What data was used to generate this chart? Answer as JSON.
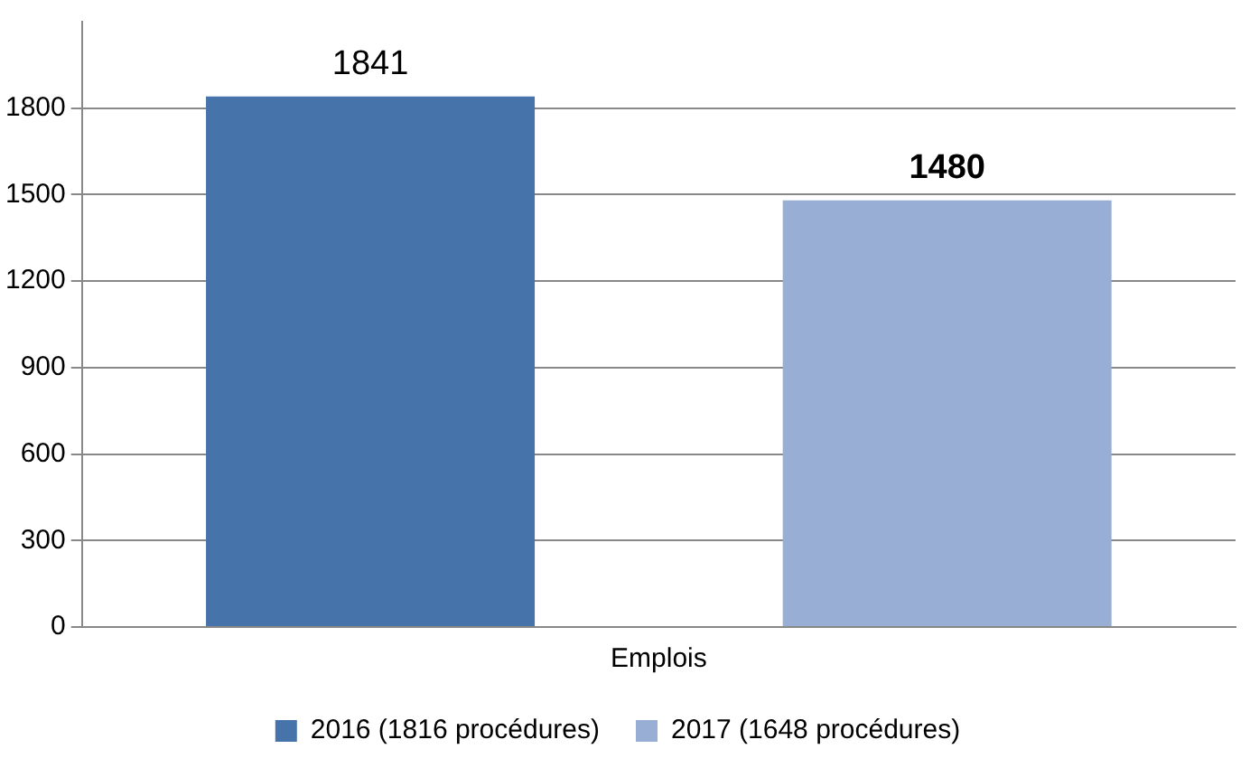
{
  "chart_data": {
    "type": "bar",
    "categories": [
      "Emplois"
    ],
    "series": [
      {
        "name": "2016 (1816 procédures)",
        "color": "#4673a9",
        "values": [
          1841
        ]
      },
      {
        "name": "2017 (1648 procédures)",
        "color": "#98aed4",
        "values": [
          1480
        ]
      }
    ],
    "ylim": [
      0,
      2100
    ],
    "yticks": [
      0,
      300,
      600,
      900,
      1200,
      1500,
      1800
    ],
    "grid": "y",
    "legend": "bottom",
    "data_labels": true
  }
}
